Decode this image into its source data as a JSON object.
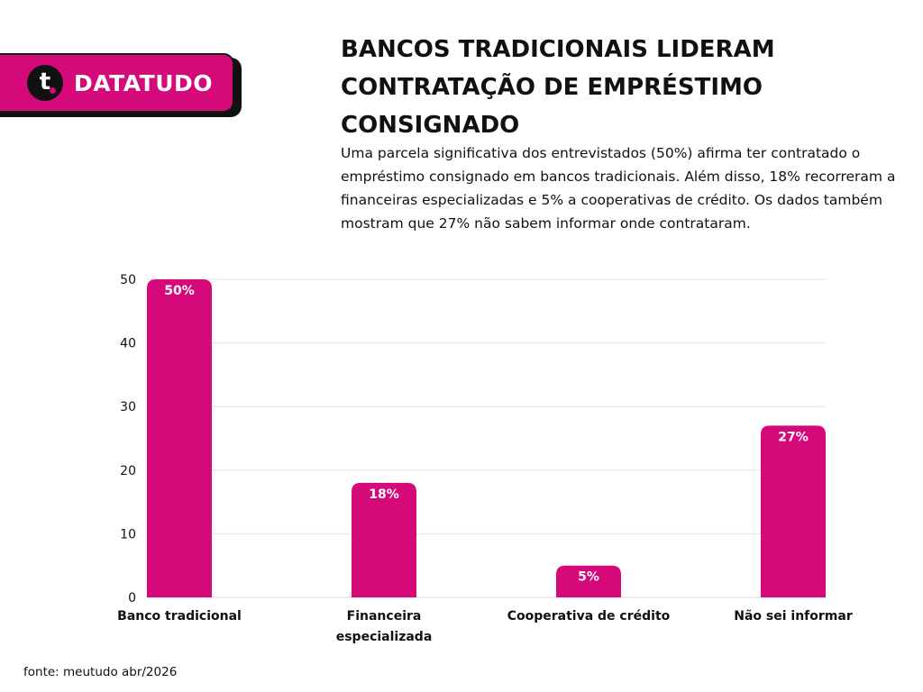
{
  "brand": {
    "name": "DATATUDO",
    "mark_letter": "t",
    "accent_color": "#D6097B",
    "dark_color": "#111111"
  },
  "header": {
    "title": "BANCOS TRADICIONAIS LIDERAM CONTRATAÇÃO DE EMPRÉSTIMO CONSIGNADO",
    "subtitle": "Uma parcela significativa dos entrevistados (50%) afirma ter contratado o empréstimo consignado em bancos tradicionais. Além disso, 18% recorreram a financeiras especializadas e 5% a cooperativas de crédito. Os dados também mostram que 27% não sabem informar onde contrataram."
  },
  "chart_data": {
    "type": "bar",
    "categories": [
      [
        "Banco tradicional"
      ],
      [
        "Financeira",
        "especializada"
      ],
      [
        "Cooperativa de crédito"
      ],
      [
        "Não sei informar"
      ]
    ],
    "values": [
      50,
      18,
      5,
      27
    ],
    "data_labels": [
      "50%",
      "18%",
      "5%",
      "27%"
    ],
    "yticks": [
      "0",
      "10",
      "20",
      "30",
      "40",
      "50"
    ],
    "ylim": [
      0,
      50
    ],
    "grid": true,
    "bar_color": "#D6097B",
    "grid_color": "#E4E4E4"
  },
  "footer": {
    "source": "fonte: meutudo abr/2026"
  }
}
